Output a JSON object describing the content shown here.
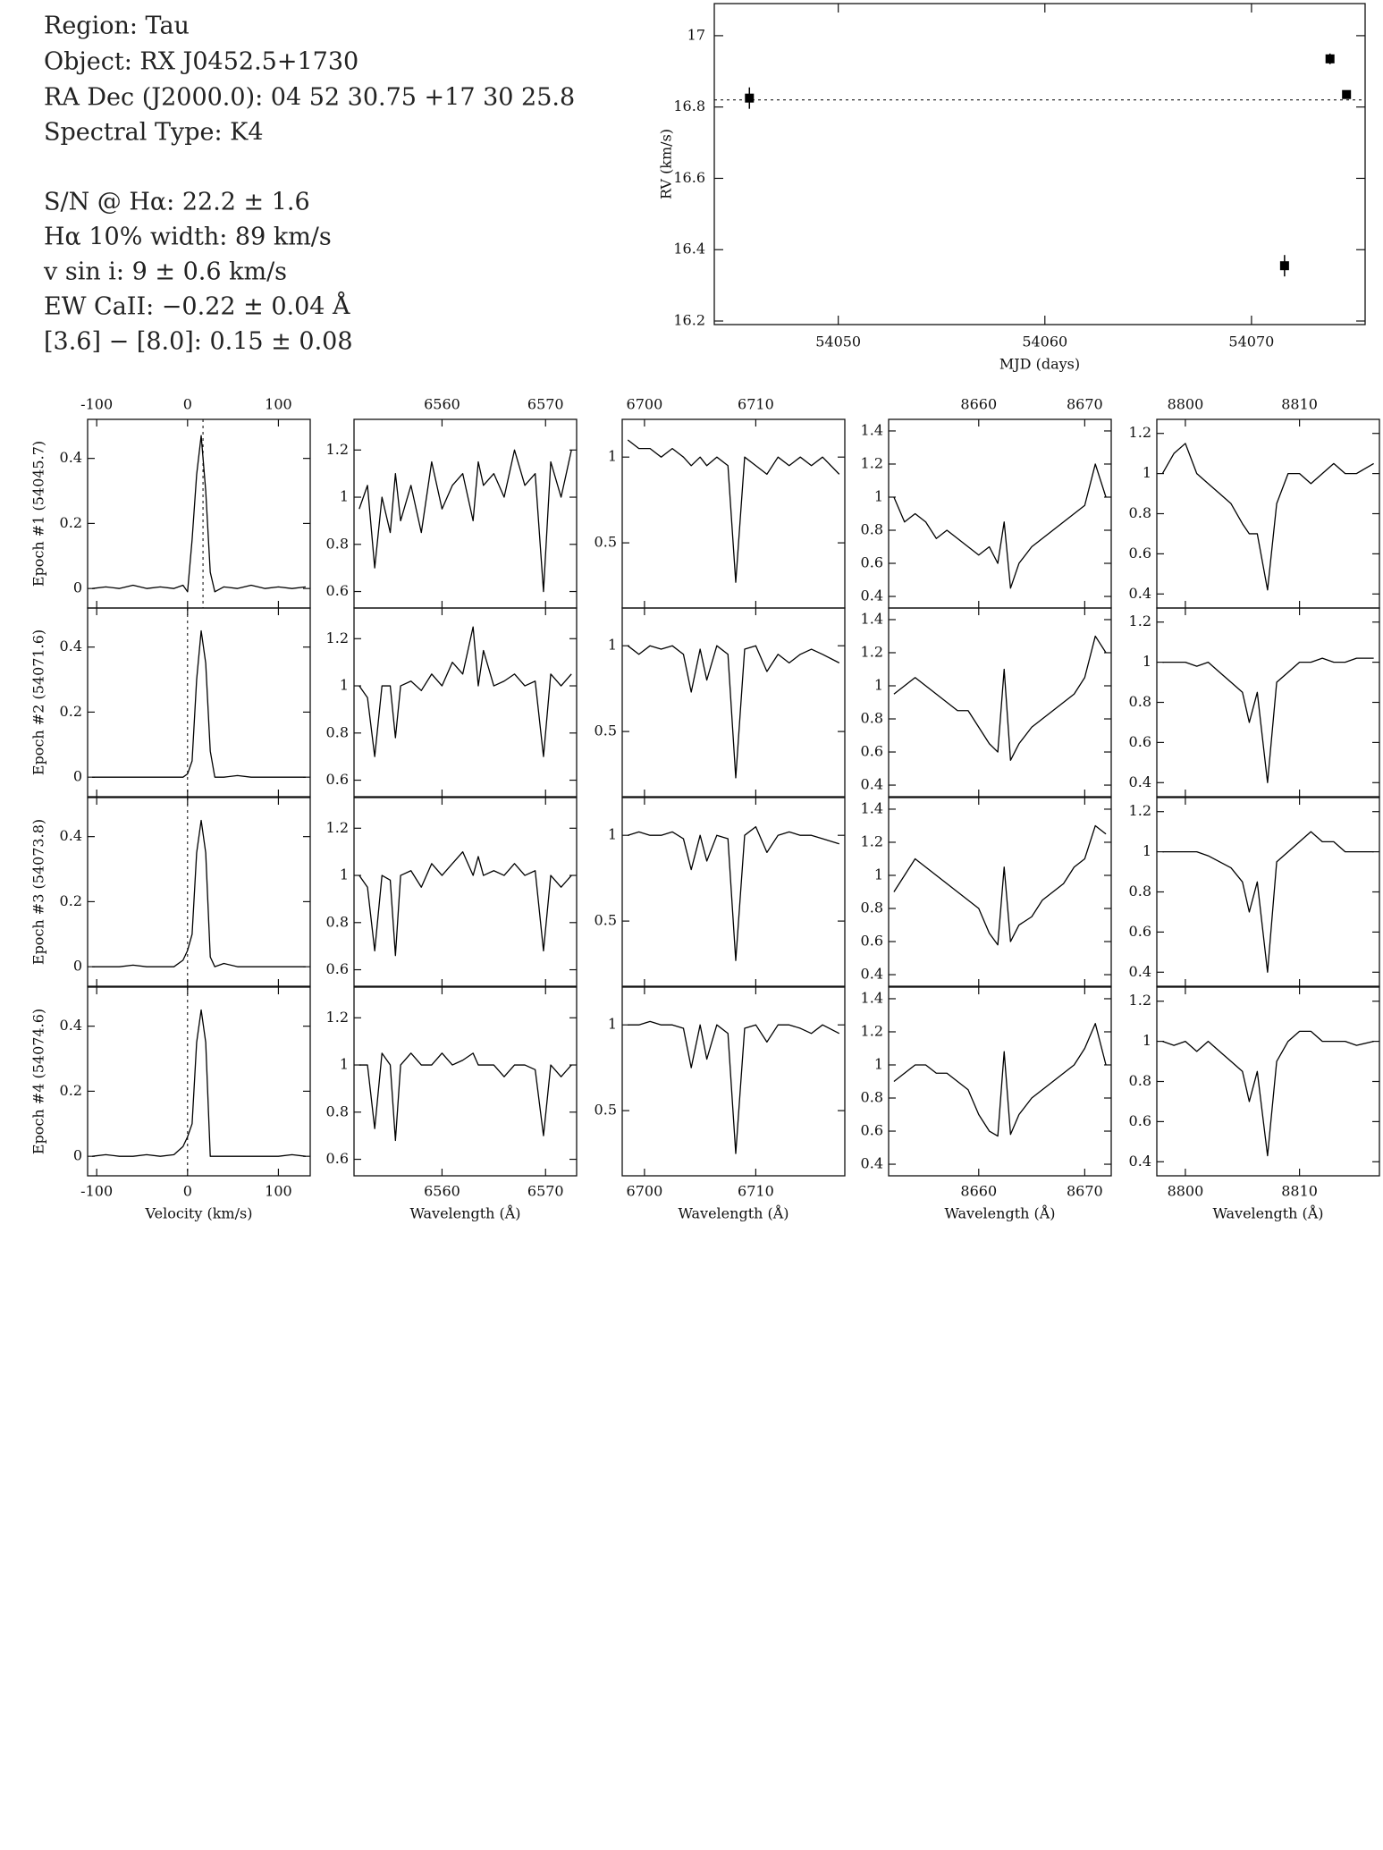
{
  "header": {
    "info": [
      "Region: Tau",
      "Object: RX J0452.5+1730",
      "RA Dec (J2000.0): 04 52 30.75 +17 30 25.8",
      "Spectral Type: K4"
    ],
    "measurements": [
      "S/N @ Hα: 22.2 ± 1.6",
      "Hα 10% width: 89 km/s",
      "v sin i: 9 ± 0.6 km/s",
      "EW CaII: −0.22 ± 0.04 Å",
      "[3.6] − [8.0]: 0.15 ± 0.08"
    ]
  },
  "chart_data": [
    {
      "type": "scatter",
      "xlabel": "MJD (days)",
      "ylabel": "RV (km/s)",
      "color": "#000000",
      "x": [
        54045.7,
        54071.6,
        54073.8,
        54074.6
      ],
      "values": [
        16.825,
        16.355,
        16.935,
        16.835
      ],
      "errors": [
        0.03,
        0.03,
        0.015,
        0.01
      ],
      "reference_line": 16.82,
      "xlim": [
        54044,
        54075.5
      ],
      "ylim": [
        16.19,
        17.09
      ],
      "xticks": [
        54050,
        54060,
        54070
      ],
      "yticks": [
        16.2,
        16.4,
        16.6,
        16.8,
        17
      ]
    },
    {
      "type": "line",
      "xlabel": "Velocity (km/s)",
      "color": "#000000",
      "xlim": [
        -110,
        135
      ],
      "ylim": [
        -0.06,
        0.52
      ],
      "xticks": [
        -100,
        0,
        100
      ],
      "yticks": [
        0,
        0.2,
        0.4
      ],
      "reference_lines": [
        17,
        0,
        0,
        0
      ],
      "x": [
        -105,
        -90,
        -75,
        -60,
        -45,
        -30,
        -15,
        -5,
        0,
        5,
        10,
        15,
        20,
        25,
        30,
        40,
        55,
        70,
        85,
        100,
        115,
        130
      ],
      "series": [
        {
          "name": "Epoch #1 (54045.7)",
          "values": [
            0,
            0.005,
            0,
            0.01,
            0,
            0.005,
            0,
            0.01,
            -0.01,
            0.15,
            0.35,
            0.47,
            0.3,
            0.05,
            -0.01,
            0.005,
            0,
            0.01,
            0,
            0.005,
            0,
            0.005
          ]
        },
        {
          "name": "Epoch #2 (54071.6)",
          "values": [
            0,
            0,
            0,
            0,
            0,
            0,
            0,
            0,
            0.01,
            0.05,
            0.3,
            0.45,
            0.35,
            0.08,
            0,
            0,
            0.005,
            0,
            0,
            0,
            0,
            0
          ]
        },
        {
          "name": "Epoch #3 (54073.8)",
          "values": [
            0,
            0,
            0,
            0.005,
            0,
            0,
            0,
            0.02,
            0.05,
            0.1,
            0.35,
            0.45,
            0.35,
            0.03,
            0,
            0.01,
            0,
            0,
            0,
            0,
            0,
            0
          ]
        },
        {
          "name": "Epoch #4 (54074.6)",
          "values": [
            0,
            0.005,
            0,
            0,
            0.005,
            0,
            0.005,
            0.03,
            0.06,
            0.1,
            0.35,
            0.45,
            0.35,
            0,
            0,
            0,
            0,
            0,
            0,
            0,
            0.005,
            0
          ]
        }
      ]
    },
    {
      "type": "line",
      "xlabel": "Wavelength (Å)",
      "color": "#000000",
      "xlim": [
        6551.5,
        6573
      ],
      "ylim": [
        0.53,
        1.33
      ],
      "xticks": [
        6560,
        6570
      ],
      "yticks": [
        0.6,
        0.8,
        1,
        1.2
      ],
      "x": [
        6552,
        6552.8,
        6553.5,
        6554.2,
        6555,
        6555.5,
        6556,
        6557,
        6558,
        6559,
        6560,
        6561,
        6562,
        6563,
        6563.5,
        6564,
        6565,
        6566,
        6567,
        6568,
        6569,
        6569.8,
        6570.5,
        6571.5,
        6572.5
      ],
      "series": [
        {
          "values": [
            0.95,
            1.05,
            0.7,
            1.0,
            0.85,
            1.1,
            0.9,
            1.05,
            0.85,
            1.15,
            0.95,
            1.05,
            1.1,
            0.9,
            1.15,
            1.05,
            1.1,
            1.0,
            1.2,
            1.05,
            1.1,
            0.6,
            1.15,
            1.0,
            1.2
          ]
        },
        {
          "values": [
            1.0,
            0.95,
            0.7,
            1.0,
            1.0,
            0.78,
            1.0,
            1.02,
            0.98,
            1.05,
            1.0,
            1.1,
            1.05,
            1.25,
            1.0,
            1.15,
            1.0,
            1.02,
            1.05,
            1.0,
            1.02,
            0.7,
            1.05,
            1.0,
            1.05
          ]
        },
        {
          "values": [
            1.0,
            0.95,
            0.68,
            1.0,
            0.98,
            0.66,
            1.0,
            1.02,
            0.95,
            1.05,
            1.0,
            1.05,
            1.1,
            1.0,
            1.08,
            1.0,
            1.02,
            1.0,
            1.05,
            1.0,
            1.02,
            0.68,
            1.0,
            0.95,
            1.0
          ]
        },
        {
          "values": [
            1.0,
            1.0,
            0.73,
            1.05,
            1.0,
            0.68,
            1.0,
            1.05,
            1.0,
            1.0,
            1.05,
            1.0,
            1.02,
            1.05,
            1.0,
            1.0,
            1.0,
            0.95,
            1.0,
            1.0,
            0.98,
            0.7,
            1.0,
            0.95,
            1.0
          ]
        }
      ]
    },
    {
      "type": "line",
      "xlabel": "Wavelength (Å)",
      "color": "#000000",
      "xlim": [
        6698,
        6718
      ],
      "ylim": [
        0.12,
        1.22
      ],
      "xticks": [
        6700,
        6710
      ],
      "yticks": [
        0.5,
        1
      ],
      "x": [
        6698.5,
        6699.5,
        6700.5,
        6701.5,
        6702.5,
        6703.5,
        6704.2,
        6705,
        6705.6,
        6706.5,
        6707.5,
        6708.2,
        6709,
        6710,
        6711,
        6712,
        6713,
        6714,
        6715,
        6716,
        6717.5
      ],
      "series": [
        {
          "values": [
            1.1,
            1.05,
            1.05,
            1.0,
            1.05,
            1.0,
            0.95,
            1.0,
            0.95,
            1.0,
            0.95,
            0.27,
            1.0,
            0.95,
            0.9,
            1.0,
            0.95,
            1.0,
            0.95,
            1.0,
            0.9
          ]
        },
        {
          "values": [
            1.0,
            0.95,
            1.0,
            0.98,
            1.0,
            0.95,
            0.73,
            0.98,
            0.8,
            1.0,
            0.95,
            0.23,
            0.98,
            1.0,
            0.85,
            0.95,
            0.9,
            0.95,
            0.98,
            0.95,
            0.9
          ]
        },
        {
          "values": [
            1.0,
            1.02,
            1.0,
            1.0,
            1.02,
            0.98,
            0.8,
            1.0,
            0.85,
            1.0,
            0.98,
            0.27,
            1.0,
            1.05,
            0.9,
            1.0,
            1.02,
            1.0,
            1.0,
            0.98,
            0.95
          ]
        },
        {
          "values": [
            1.0,
            1.0,
            1.02,
            1.0,
            1.0,
            0.98,
            0.75,
            1.0,
            0.8,
            1.0,
            0.95,
            0.25,
            0.98,
            1.0,
            0.9,
            1.0,
            1.0,
            0.98,
            0.95,
            1.0,
            0.95
          ]
        }
      ]
    },
    {
      "type": "line",
      "xlabel": "Wavelength (Å)",
      "color": "#000000",
      "xlim": [
        8651.5,
        8672.5
      ],
      "ylim": [
        0.33,
        1.47
      ],
      "xticks": [
        8660,
        8670
      ],
      "yticks": [
        0.4,
        0.6,
        0.8,
        1,
        1.2,
        1.4
      ],
      "x": [
        8652,
        8653,
        8654,
        8655,
        8656,
        8657,
        8658,
        8659,
        8660,
        8661,
        8661.8,
        8662.4,
        8663,
        8663.8,
        8665,
        8666,
        8667,
        8668,
        8669,
        8670,
        8671,
        8672
      ],
      "series": [
        {
          "values": [
            1.0,
            0.85,
            0.9,
            0.85,
            0.75,
            0.8,
            0.75,
            0.7,
            0.65,
            0.7,
            0.6,
            0.85,
            0.45,
            0.6,
            0.7,
            0.75,
            0.8,
            0.85,
            0.9,
            0.95,
            1.2,
            1.0
          ]
        },
        {
          "values": [
            0.95,
            1.0,
            1.05,
            1.0,
            0.95,
            0.9,
            0.85,
            0.85,
            0.75,
            0.65,
            0.6,
            1.1,
            0.55,
            0.65,
            0.75,
            0.8,
            0.85,
            0.9,
            0.95,
            1.05,
            1.3,
            1.2
          ]
        },
        {
          "values": [
            0.9,
            1.0,
            1.1,
            1.05,
            1.0,
            0.95,
            0.9,
            0.85,
            0.8,
            0.65,
            0.58,
            1.05,
            0.6,
            0.7,
            0.75,
            0.85,
            0.9,
            0.95,
            1.05,
            1.1,
            1.3,
            1.25
          ]
        },
        {
          "values": [
            0.9,
            0.95,
            1.0,
            1.0,
            0.95,
            0.95,
            0.9,
            0.85,
            0.7,
            0.6,
            0.57,
            1.08,
            0.58,
            0.7,
            0.8,
            0.85,
            0.9,
            0.95,
            1.0,
            1.1,
            1.25,
            1.0
          ]
        }
      ]
    },
    {
      "type": "line",
      "xlabel": "Wavelength (Å)",
      "color": "#000000",
      "xlim": [
        8797.5,
        8817
      ],
      "ylim": [
        0.33,
        1.27
      ],
      "xticks": [
        8800,
        8810
      ],
      "yticks": [
        0.4,
        0.6,
        0.8,
        1,
        1.2
      ],
      "x": [
        8798,
        8799,
        8800,
        8801,
        8802,
        8803,
        8804,
        8805,
        8805.6,
        8806.3,
        8807.2,
        8808,
        8809,
        8810,
        8811,
        8812,
        8813,
        8814,
        8815,
        8816.5
      ],
      "series": [
        {
          "values": [
            1.0,
            1.1,
            1.15,
            1.0,
            0.95,
            0.9,
            0.85,
            0.75,
            0.7,
            0.7,
            0.42,
            0.85,
            1.0,
            1.0,
            0.95,
            1.0,
            1.05,
            1.0,
            1.0,
            1.05
          ]
        },
        {
          "values": [
            1.0,
            1.0,
            1.0,
            0.98,
            1.0,
            0.95,
            0.9,
            0.85,
            0.7,
            0.85,
            0.4,
            0.9,
            0.95,
            1.0,
            1.0,
            1.02,
            1.0,
            1.0,
            1.02,
            1.02
          ]
        },
        {
          "values": [
            1.0,
            1.0,
            1.0,
            1.0,
            0.98,
            0.95,
            0.92,
            0.85,
            0.7,
            0.85,
            0.4,
            0.95,
            1.0,
            1.05,
            1.1,
            1.05,
            1.05,
            1.0,
            1.0,
            1.0
          ]
        },
        {
          "values": [
            1.0,
            0.98,
            1.0,
            0.95,
            1.0,
            0.95,
            0.9,
            0.85,
            0.7,
            0.85,
            0.43,
            0.9,
            1.0,
            1.05,
            1.05,
            1.0,
            1.0,
            1.0,
            0.98,
            1.0
          ]
        }
      ]
    }
  ]
}
